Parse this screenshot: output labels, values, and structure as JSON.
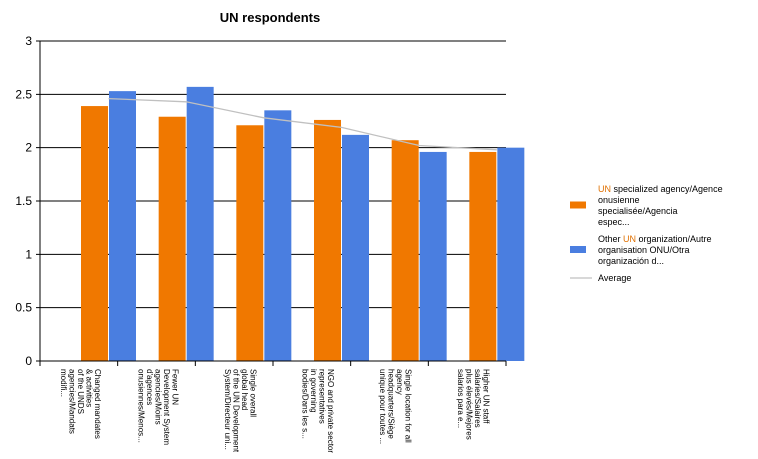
{
  "chart_data": {
    "type": "bar",
    "title": "UN respondents",
    "xlabel": "",
    "ylabel": "",
    "ylim": [
      0,
      3
    ],
    "yticks": [
      "0",
      "0.5",
      "1",
      "1.5",
      "2",
      "2.5",
      "3"
    ],
    "grid": true,
    "legend_position": "right",
    "categories": [
      [
        "Changed mandates",
        "& activities",
        "of the UNDS",
        "agencies/Mandats",
        "modifi..."
      ],
      [
        "Fewer UN",
        "Development System",
        "agencies/Moins",
        "d'agences",
        "onusiennes/Menos..."
      ],
      [
        "Single overall",
        "global head",
        "of the UN Development",
        "System/Directeur uni..."
      ],
      [
        "NGO and private sector",
        "representatives",
        "in governing",
        "bodies/Dans les s..."
      ],
      [
        "Single location for all",
        "agency",
        "headquarters/Siège",
        "unique pour toutes ..."
      ],
      [
        "Higher UN staff",
        "salaries/Salaires",
        "plus élevés/Mejores",
        "salarios para e..."
      ]
    ],
    "series": [
      {
        "name": "UN specialized agency/Agence onusienne specialis&#233;e/Agencia espec...",
        "name_lines": [
          "UN specialized agency/Agence",
          "onusienne",
          "specialis&#233;e/Agencia",
          "espec..."
        ],
        "color": "#f07800",
        "type": "bar",
        "values": [
          2.39,
          2.29,
          2.21,
          2.26,
          2.07,
          1.96
        ]
      },
      {
        "name": "Other UN organization/Autre organisation ONU/Otra organizaci&#243;n d...",
        "name_lines": [
          "Other UN organization/Autre",
          "organisation ONU/Otra",
          "organizaci&#243;n d..."
        ],
        "color": "#4a7ee0",
        "type": "bar",
        "values": [
          2.53,
          2.57,
          2.35,
          2.12,
          1.96,
          2.0
        ]
      },
      {
        "name": "Average",
        "name_lines": [
          "Average"
        ],
        "color": "#c0c0c0",
        "type": "line",
        "values": [
          2.46,
          2.43,
          2.28,
          2.19,
          2.02,
          1.98
        ]
      }
    ]
  }
}
